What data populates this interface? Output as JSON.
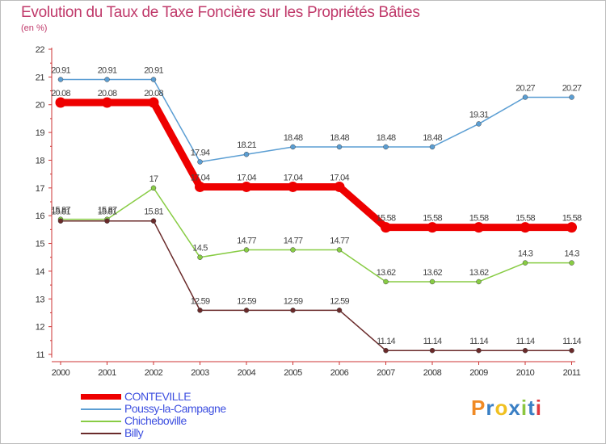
{
  "chart_data": {
    "type": "line",
    "title": "Evolution du Taux de Taxe Foncière sur les Propriétés Bâties",
    "subtitle": "(en %)",
    "x": [
      "2000",
      "2001",
      "2002",
      "2003",
      "2004",
      "2005",
      "2006",
      "2007",
      "2008",
      "2009",
      "2010",
      "2011"
    ],
    "ylim": [
      11,
      22
    ],
    "yticks": [
      "11",
      "12",
      "13",
      "14",
      "15",
      "16",
      "17",
      "18",
      "19",
      "20",
      "21",
      "22"
    ],
    "series": [
      {
        "name": "CONTEVILLE",
        "color": "#ee0000",
        "values": [
          20.08,
          20.08,
          20.08,
          17.04,
          17.04,
          17.04,
          17.04,
          15.58,
          15.58,
          15.58,
          15.58,
          15.58
        ],
        "labels": [
          "20.08",
          "20.08",
          "20.08",
          "17.04",
          "17.04",
          "17.04",
          "17.04",
          "15.58",
          "15.58",
          "15.58",
          "15.58",
          "15.58"
        ]
      },
      {
        "name": "Poussy-la-Campagne",
        "color": "#5b9ed3",
        "values": [
          20.91,
          20.91,
          20.91,
          17.94,
          18.21,
          18.48,
          18.48,
          18.48,
          18.48,
          19.31,
          20.27,
          20.27
        ],
        "labels": [
          "20.91",
          "20.91",
          "20.91",
          "17.94",
          "18.21",
          "18.48",
          "18.48",
          "18.48",
          "18.48",
          "19.31",
          "20.27",
          "20.27"
        ]
      },
      {
        "name": "Chicheboville",
        "color": "#88cc44",
        "values": [
          15.87,
          15.87,
          17,
          14.5,
          14.77,
          14.77,
          14.77,
          13.62,
          13.62,
          13.62,
          14.3,
          14.3
        ],
        "labels": [
          "15.87",
          "15.87",
          "17",
          "14.5",
          "14.77",
          "14.77",
          "14.77",
          "13.62",
          "13.62",
          "13.62",
          "14.3",
          "14.3"
        ]
      },
      {
        "name": "Billy",
        "color": "#6a2a2a",
        "values": [
          15.81,
          15.81,
          15.81,
          12.59,
          12.59,
          12.59,
          12.59,
          11.14,
          11.14,
          11.14,
          11.14,
          11.14
        ],
        "labels": [
          "15.81",
          "15.81",
          "15.81",
          "12.59",
          "12.59",
          "12.59",
          "12.59",
          "11.14",
          "11.14",
          "11.14",
          "11.14",
          "11.14"
        ]
      }
    ],
    "grid": false,
    "legend_position": "bottom-left"
  },
  "brand": {
    "letters": [
      "P",
      "r",
      "o",
      "x",
      "i",
      "t",
      "i"
    ]
  }
}
